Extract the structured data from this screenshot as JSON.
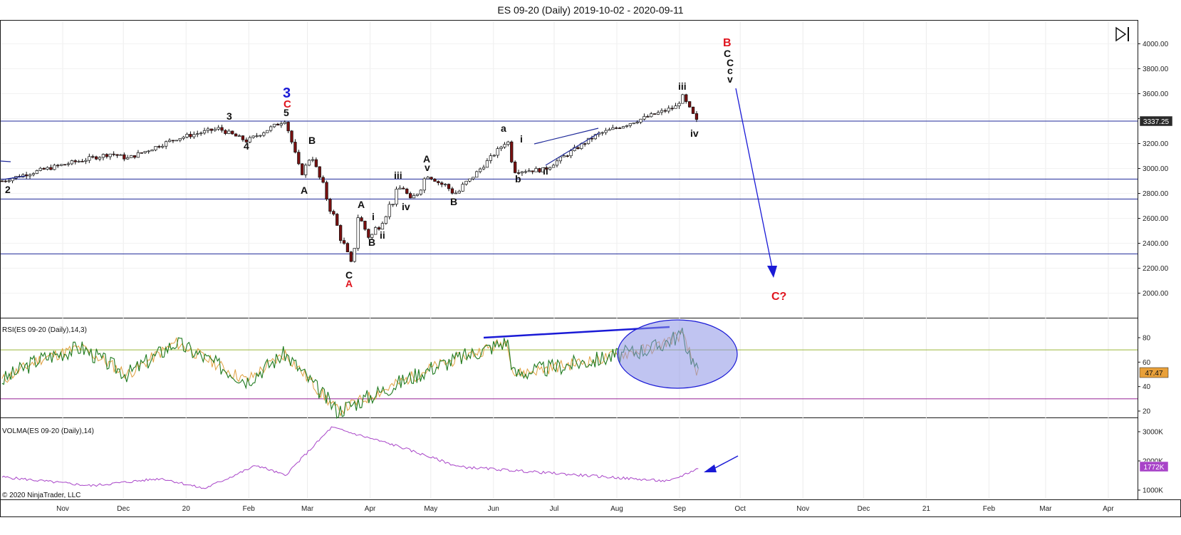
{
  "title": "ES 09-20 (Daily)  2019-10-02 - 2020-09-11",
  "copyright": "© 2020 NinjaTrader, LLC",
  "colors": {
    "frame": "#1a1a1a",
    "hline": "#1f2a9a",
    "candle_up": "#ffffff",
    "candle_down": "#7a1010",
    "rsi_line": "#1f7a1f",
    "rsi_signal": "#e0a040",
    "rsi_upper": "#9ab83a",
    "rsi_lower": "#a03aa0",
    "volma_line": "#a844c8",
    "annotation_blue": "#1a1ad6",
    "ellipse_fill": "#8d93e6",
    "label_red": "#e0141e",
    "price_badge": "#2a2a2a",
    "rsi_badge": "#e8a03a",
    "volma_badge": "#a844c8"
  },
  "price_panel": {
    "y_ticks": [
      "4000.00",
      "3800.00",
      "3600.00",
      "3400.00",
      "3200.00",
      "3000.00",
      "2800.00",
      "2600.00",
      "2400.00",
      "2200.00",
      "2000.00"
    ],
    "last_price": "3337.25",
    "horizontal_levels": [
      3380,
      2915,
      2755,
      2315
    ]
  },
  "rsi_panel": {
    "label": "RSI(ES 09-20 (Daily),14,3)",
    "y_ticks": [
      "80",
      "60",
      "40",
      "20"
    ],
    "last_value": "47.47",
    "upper_line": 70,
    "lower_line": 30
  },
  "volma_panel": {
    "label": "VOLMA(ES 09-20 (Daily),14)",
    "y_ticks": [
      "3000K",
      "2000K",
      "1000K"
    ],
    "last_value": "1772K"
  },
  "x_axis": {
    "ticks": [
      "Nov",
      "Dec",
      "20",
      "Feb",
      "Mar",
      "Apr",
      "May",
      "Jun",
      "Jul",
      "Aug",
      "Sep",
      "Oct",
      "Nov",
      "Dec",
      "21",
      "Feb",
      "Mar",
      "Apr"
    ]
  },
  "wave_labels": {
    "l_2": "2",
    "l_3a": "3",
    "l_4a": "4",
    "l_big3": "3",
    "l_cred": "C",
    "l_5": "5",
    "l_A1": "A",
    "l_B1": "B",
    "l_A2": "A",
    "l_i1": "i",
    "l_B2": "B",
    "l_ii1": "ii",
    "l_C1": "C",
    "l_Ared": "A",
    "l_iii1": "iii",
    "l_iv1": "iv",
    "l_A3": "A",
    "l_v1": "v",
    "l_B3": "B",
    "l_a": "a",
    "l_b": "b",
    "l_i2": "i",
    "l_ii2": "ii",
    "l_iii2": "iii",
    "l_iv2": "iv",
    "l_Bred": "B",
    "l_Cs1": "C",
    "l_Cs2": "C",
    "l_cs": "c",
    "l_vs": "v",
    "l_Cq": "C?"
  },
  "chart_data": {
    "type": "candlestick",
    "title": "ES 09-20 (Daily)  2019-10-02 - 2020-09-11",
    "x_range": [
      "2019-10-02",
      "2020-09-11"
    ],
    "ylim": [
      1800,
      4100
    ],
    "price_path": [
      {
        "date": "2019-10-02",
        "close": 2900
      },
      {
        "date": "2019-10-15",
        "close": 2960
      },
      {
        "date": "2019-11-01",
        "close": 3030
      },
      {
        "date": "2019-11-25",
        "close": 3120
      },
      {
        "date": "2019-12-03",
        "close": 3080
      },
      {
        "date": "2019-12-27",
        "close": 3240
      },
      {
        "date": "2020-01-17",
        "close": 3320
      },
      {
        "date": "2020-01-31",
        "close": 3220
      },
      {
        "date": "2020-02-19",
        "close": 3390
      },
      {
        "date": "2020-02-27",
        "close": 2950
      },
      {
        "date": "2020-03-03",
        "close": 3110
      },
      {
        "date": "2020-03-23",
        "close": 2200
      },
      {
        "date": "2020-03-26",
        "close": 2620
      },
      {
        "date": "2020-04-01",
        "close": 2440
      },
      {
        "date": "2020-04-17",
        "close": 2870
      },
      {
        "date": "2020-04-21",
        "close": 2720
      },
      {
        "date": "2020-04-29",
        "close": 2950
      },
      {
        "date": "2020-05-14",
        "close": 2800
      },
      {
        "date": "2020-06-08",
        "close": 3230
      },
      {
        "date": "2020-06-11",
        "close": 2980
      },
      {
        "date": "2020-06-26",
        "close": 2990
      },
      {
        "date": "2020-07-22",
        "close": 3270
      },
      {
        "date": "2020-08-31",
        "close": 3500
      },
      {
        "date": "2020-09-02",
        "close": 3590
      },
      {
        "date": "2020-09-11",
        "close": 3337.25
      }
    ],
    "rsi": {
      "name": "RSI(ES 09-20 (Daily),14,3)",
      "points": [
        {
          "date": "2019-10-02",
          "value": 45
        },
        {
          "date": "2019-10-20",
          "value": 62
        },
        {
          "date": "2019-11-10",
          "value": 72
        },
        {
          "date": "2019-12-03",
          "value": 50
        },
        {
          "date": "2019-12-27",
          "value": 76
        },
        {
          "date": "2020-01-31",
          "value": 45
        },
        {
          "date": "2020-02-19",
          "value": 67
        },
        {
          "date": "2020-03-16",
          "value": 20
        },
        {
          "date": "2020-04-01",
          "value": 32
        },
        {
          "date": "2020-05-01",
          "value": 55
        },
        {
          "date": "2020-06-08",
          "value": 77
        },
        {
          "date": "2020-06-11",
          "value": 50
        },
        {
          "date": "2020-07-22",
          "value": 62
        },
        {
          "date": "2020-08-20",
          "value": 72
        },
        {
          "date": "2020-09-02",
          "value": 83
        },
        {
          "date": "2020-09-11",
          "value": 47.47
        }
      ]
    },
    "volma": {
      "name": "VOLMA(ES 09-20 (Daily),14)",
      "points": [
        {
          "date": "2019-10-02",
          "value": 1450
        },
        {
          "date": "2019-11-15",
          "value": 1150
        },
        {
          "date": "2019-12-20",
          "value": 1400
        },
        {
          "date": "2020-01-10",
          "value": 1050
        },
        {
          "date": "2020-02-05",
          "value": 1850
        },
        {
          "date": "2020-02-19",
          "value": 1500
        },
        {
          "date": "2020-03-13",
          "value": 3150
        },
        {
          "date": "2020-04-15",
          "value": 2500
        },
        {
          "date": "2020-05-15",
          "value": 1800
        },
        {
          "date": "2020-06-26",
          "value": 1600
        },
        {
          "date": "2020-08-27",
          "value": 1300
        },
        {
          "date": "2020-09-11",
          "value": 1772
        }
      ]
    },
    "projection": {
      "from_date": "2020-09-20",
      "from_value": 3800,
      "to_date": "2020-10-25",
      "to_value": 2150,
      "label": "C?"
    }
  }
}
